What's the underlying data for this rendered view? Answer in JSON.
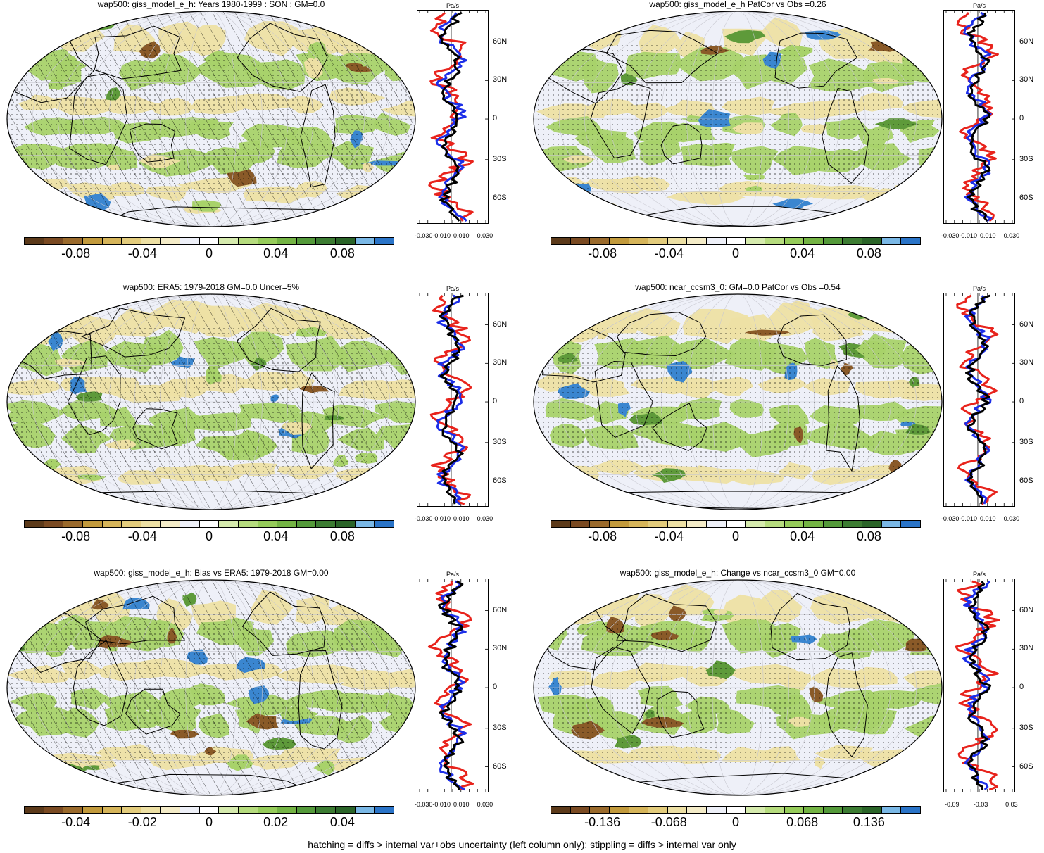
{
  "panels": [
    {
      "title": "wap500: giss_model_e_h: Years 1980-1999 : SON : GM=0.0",
      "hatching": true,
      "stippling": true,
      "colorbar_labels": [
        "-0.08",
        "-0.04",
        "0",
        "0.04",
        "0.08"
      ],
      "profile_xticks": [
        "-0.030-0.010",
        "0.010",
        "0.030"
      ],
      "profile_unit": "Pa/s",
      "profile_lats": [
        "60N",
        "30N",
        "0",
        "30S",
        "60S"
      ]
    },
    {
      "title": "wap500: giss_model_e_h PatCor vs Obs =0.26",
      "hatching": false,
      "stippling": true,
      "colorbar_labels": [
        "-0.08",
        "-0.04",
        "0",
        "0.04",
        "0.08"
      ],
      "profile_xticks": [
        "-0.030-0.010",
        "0.010",
        "0.030"
      ],
      "profile_unit": "Pa/s",
      "profile_lats": [
        "60N",
        "30N",
        "0",
        "30S",
        "60S"
      ]
    },
    {
      "title": "wap500: ERA5: 1979-2018 GM=0.0 Uncer=5%",
      "hatching": true,
      "stippling": true,
      "colorbar_labels": [
        "-0.08",
        "-0.04",
        "0",
        "0.04",
        "0.08"
      ],
      "profile_xticks": [
        "-0.030-0.010",
        "0.010",
        "0.030"
      ],
      "profile_unit": "Pa/s",
      "profile_lats": [
        "60N",
        "30N",
        "0",
        "30S",
        "60S"
      ]
    },
    {
      "title": "wap500: ncar_ccsm3_0: GM=0.0 PatCor vs Obs =0.54",
      "hatching": false,
      "stippling": true,
      "colorbar_labels": [
        "-0.08",
        "-0.04",
        "0",
        "0.04",
        "0.08"
      ],
      "profile_xticks": [
        "-0.030-0.010",
        "0.010",
        "0.030"
      ],
      "profile_unit": "Pa/s",
      "profile_lats": [
        "60N",
        "30N",
        "0",
        "30S",
        "60S"
      ]
    },
    {
      "title": "wap500: giss_model_e_h: Bias vs ERA5: 1979-2018  GM=0.00",
      "hatching": true,
      "stippling": true,
      "colorbar_labels": [
        "-0.04",
        "-0.02",
        "0",
        "0.02",
        "0.04"
      ],
      "profile_xticks": [
        "-0.030-0.010",
        "0.010",
        "0.030"
      ],
      "profile_unit": "Pa/s",
      "profile_lats": [
        "60N",
        "30N",
        "0",
        "30S",
        "60S"
      ]
    },
    {
      "title": "wap500: giss_model_e_h: Change vs ncar_ccsm3_0 GM=0.00",
      "hatching": false,
      "stippling": true,
      "colorbar_labels": [
        "-0.136",
        "-0.068",
        "0",
        "0.068",
        "0.136"
      ],
      "profile_xticks": [
        "-0.09",
        "-0.03",
        "0.03"
      ],
      "profile_unit": "Pa/s",
      "profile_lats": [
        "60N",
        "30N",
        "0",
        "30S",
        "60S"
      ]
    }
  ],
  "colorbar_colors": [
    "#5c3a1a",
    "#7a4a22",
    "#9a6a2c",
    "#c29a3c",
    "#d6b55a",
    "#e3cc7c",
    "#ede0a4",
    "#f4ecc8",
    "#eef0f8",
    "#ffffff",
    "#d6ebae",
    "#b6dc7e",
    "#96cc5a",
    "#74b444",
    "#549a3a",
    "#3c7c32",
    "#2a6428",
    "#7ab8e6",
    "#2a74c8"
  ],
  "map_colors": {
    "ocean_base": "#eef0f8",
    "green": "#a8d26a",
    "dark_green": "#5e9a3a",
    "tan": "#ede0a4",
    "brown": "#8a5a28",
    "blue": "#3a86d0"
  },
  "profile_colors": {
    "model": "#e8231c",
    "obs": "#1c2ee8",
    "mean": "#000000"
  },
  "footer": "hatching = diffs > internal var+obs uncertainty (left column only); stippling = diffs > internal var only"
}
